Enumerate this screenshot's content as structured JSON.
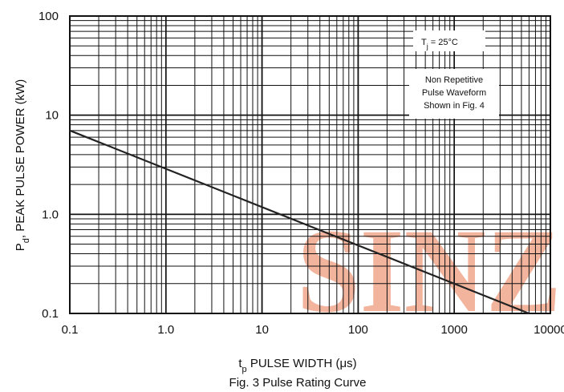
{
  "chart_data": {
    "type": "line",
    "xscale": "log",
    "yscale": "log",
    "xlim": [
      0.1,
      10000
    ],
    "ylim": [
      0.1,
      100
    ],
    "x_ticks": [
      "0.1",
      "1.0",
      "10",
      "100",
      "1000",
      "10000"
    ],
    "y_ticks": [
      "0.1",
      "1.0",
      "10",
      "100"
    ],
    "xlabel_main": "t",
    "xlabel_sub": "p",
    "xlabel_rest": " PULSE WIDTH (μs)",
    "ylabel_main": "P",
    "ylabel_sub": "d",
    "ylabel_rest": ", PEAK PULSE POWER (kW)",
    "caption": "Fig. 3 Pulse Rating Curve",
    "grid": true,
    "series": [
      {
        "x": [
          0.1,
          6000
        ],
        "y": [
          7,
          0.1
        ],
        "color": "#222222"
      }
    ],
    "annotations": {
      "tj_main": "T",
      "tj_sub": "j",
      "tj_rest": " = 25°C",
      "waveform_lines": [
        "Non Repetitive",
        "Pulse Waveform",
        "Shown in Fig. 4"
      ]
    },
    "watermark": "SINZ",
    "colors": {
      "line": "#222222",
      "grid": "#111111",
      "watermark": "#f0a88c"
    }
  }
}
